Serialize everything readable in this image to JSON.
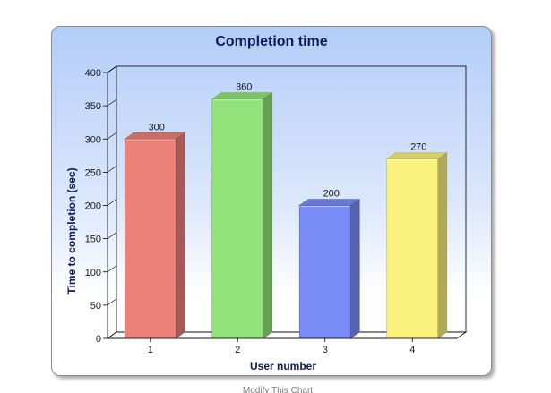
{
  "chart_data": {
    "type": "bar",
    "title": "Completion time",
    "xlabel": "User number",
    "ylabel": "Time to completion (sec)",
    "categories": [
      "1",
      "2",
      "3",
      "4"
    ],
    "values": [
      300,
      360,
      200,
      270
    ],
    "ylim": [
      0,
      400
    ],
    "yticks": [
      0,
      50,
      100,
      150,
      200,
      250,
      300,
      350,
      400
    ],
    "colors": [
      "#ec8179",
      "#92e47a",
      "#7a8cf6",
      "#faf27d"
    ],
    "grid": false,
    "legend": "none"
  },
  "footer": {
    "caption": "Modify This Chart"
  }
}
